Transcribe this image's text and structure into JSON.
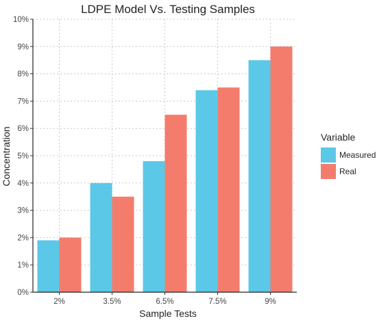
{
  "chart_data": {
    "type": "bar",
    "title": "LDPE Model Vs. Testing Samples",
    "xlabel": "Sample Tests",
    "ylabel": "Concentration",
    "categories": [
      "2%",
      "3.5%",
      "6.5%",
      "7.5%",
      "9%"
    ],
    "series": [
      {
        "name": "Measured",
        "values": [
          1.9,
          4.0,
          4.8,
          7.4,
          8.5
        ],
        "color": "#5bc8e8"
      },
      {
        "name": "Real",
        "values": [
          2.0,
          3.5,
          6.5,
          7.5,
          9.0
        ],
        "color": "#f47c6c"
      }
    ],
    "ylim": [
      0,
      10
    ],
    "yticks": [
      "0%",
      "1%",
      "2%",
      "3%",
      "4%",
      "5%",
      "6%",
      "7%",
      "8%",
      "9%",
      "10%"
    ],
    "grid": true,
    "legend": {
      "title": "Variable",
      "position": "right"
    }
  }
}
